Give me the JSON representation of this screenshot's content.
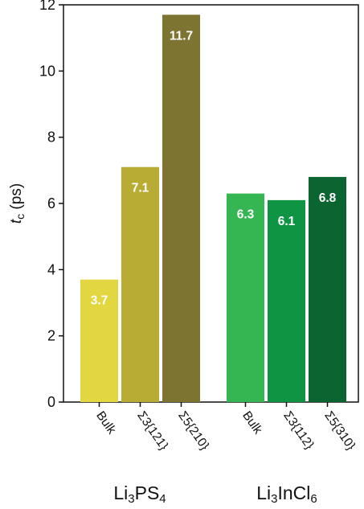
{
  "chart_data": {
    "type": "bar",
    "ylabel_main": "t",
    "ylabel_sub": "c",
    "ylabel_unit": "(ps)",
    "ylim": [
      0,
      12
    ],
    "yticks": [
      0,
      2,
      4,
      6,
      8,
      10,
      12
    ],
    "groups": [
      {
        "name_base": "Li",
        "name_parts": [
          [
            "3",
            "PS"
          ],
          [
            "4",
            ""
          ]
        ],
        "name": "Li3PS4",
        "categories": [
          "Bulk",
          "Σ3{121}",
          "Σ5{210}"
        ],
        "values": [
          3.7,
          7.1,
          11.7
        ],
        "colors": [
          "#e3d741",
          "#b8ac35",
          "#7d7431"
        ]
      },
      {
        "name_base": "Li",
        "name_parts": [
          [
            "3",
            "InCl"
          ],
          [
            "6",
            ""
          ]
        ],
        "name": "Li3InCl6",
        "categories": [
          "Bulk",
          "Σ3{112}",
          "Σ5{310}"
        ],
        "values": [
          6.3,
          6.1,
          6.8
        ],
        "colors": [
          "#35b653",
          "#0f9444",
          "#0b6530"
        ]
      }
    ]
  }
}
